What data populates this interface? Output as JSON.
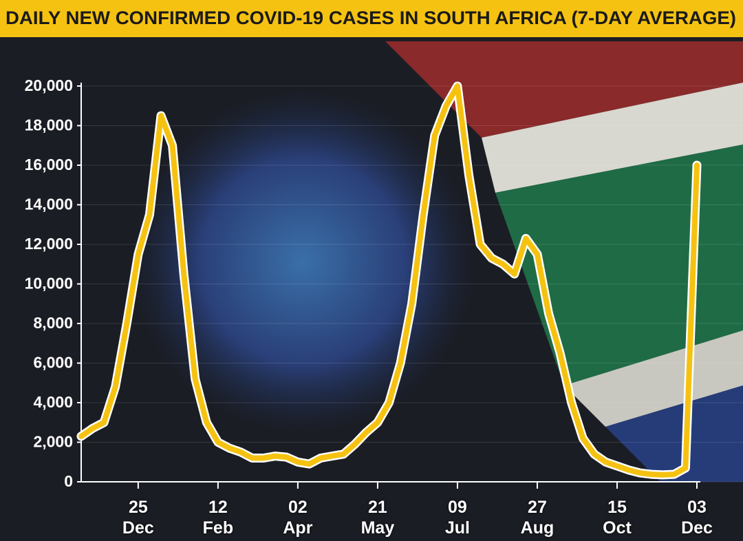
{
  "chart_data": {
    "type": "line",
    "title": "DAILY NEW CONFIRMED COVID-19 CASES IN SOUTH AFRICA (7-DAY AVERAGE)",
    "categories": [
      null,
      null,
      null,
      null,
      null,
      "25 Dec",
      null,
      null,
      null,
      null,
      null,
      null,
      "12 Feb",
      null,
      null,
      null,
      null,
      null,
      null,
      "02 Apr",
      null,
      null,
      null,
      null,
      null,
      null,
      "21 May",
      null,
      null,
      null,
      null,
      null,
      null,
      "09 Jul",
      null,
      null,
      null,
      null,
      null,
      null,
      "27 Aug",
      null,
      null,
      null,
      null,
      null,
      null,
      "15 Oct",
      null,
      null,
      null,
      null,
      null,
      null,
      "03 Dec"
    ],
    "series": [
      {
        "name": "7-day average",
        "color": "#f5c211",
        "values": [
          2300,
          2700,
          3000,
          4800,
          8000,
          11500,
          13500,
          18500,
          17000,
          10500,
          5200,
          3000,
          2000,
          1700,
          1500,
          1200,
          1200,
          1300,
          1250,
          1000,
          900,
          1200,
          1300,
          1400,
          1900,
          2500,
          3000,
          4000,
          6000,
          9000,
          13500,
          17500,
          19000,
          20000,
          15500,
          12000,
          11300,
          11000,
          10500,
          12300,
          11500,
          8500,
          6500,
          4000,
          2200,
          1400,
          1000,
          800,
          600,
          450,
          380,
          350,
          380,
          700,
          16000
        ]
      }
    ],
    "ylim": [
      0,
      20000
    ],
    "yticks": [
      0,
      {
        "value": 2000,
        "label": "2,000"
      },
      {
        "value": 4000,
        "label": "4,000"
      },
      {
        "value": 6000,
        "label": "6,000"
      },
      {
        "value": 8000,
        "label": "8,000"
      },
      {
        "value": 10000,
        "label": "10,000"
      },
      {
        "value": 12000,
        "label": "12,000"
      },
      {
        "value": 14000,
        "label": "14,000"
      },
      {
        "value": 16000,
        "label": "16,000"
      },
      {
        "value": 18000,
        "label": "18,000"
      },
      {
        "value": 20000,
        "label": "20,000"
      }
    ]
  }
}
